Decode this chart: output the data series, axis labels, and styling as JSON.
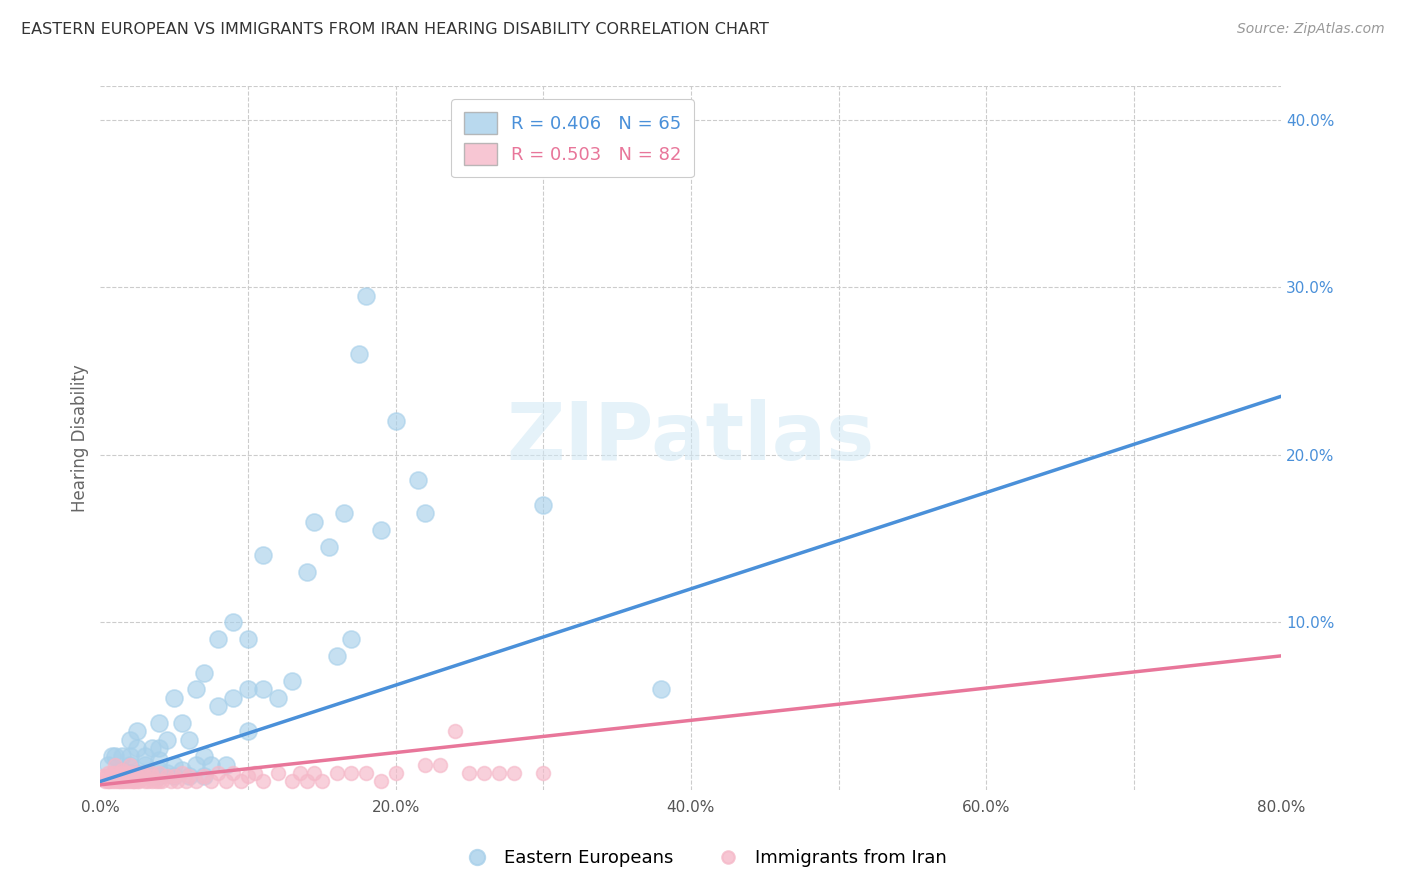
{
  "title": "EASTERN EUROPEAN VS IMMIGRANTS FROM IRAN HEARING DISABILITY CORRELATION CHART",
  "source": "Source: ZipAtlas.com",
  "xlabel": "",
  "ylabel": "Hearing Disability",
  "xlim": [
    0.0,
    0.8
  ],
  "ylim": [
    0.0,
    0.42
  ],
  "xticks": [
    0.0,
    0.1,
    0.2,
    0.3,
    0.4,
    0.5,
    0.6,
    0.7,
    0.8
  ],
  "xticklabels": [
    "0.0%",
    "",
    "20.0%",
    "",
    "40.0%",
    "",
    "60.0%",
    "",
    "80.0%"
  ],
  "yticks_right": [
    0.0,
    0.1,
    0.2,
    0.3,
    0.4
  ],
  "yticklabels_right": [
    "",
    "10.0%",
    "20.0%",
    "30.0%",
    "40.0%"
  ],
  "legend1_label": "R = 0.406   N = 65",
  "legend2_label": "R = 0.503   N = 82",
  "legend_bottom_label1": "Eastern Europeans",
  "legend_bottom_label2": "Immigrants from Iran",
  "blue_color": "#a8d0ea",
  "blue_fill_color": "#a8d0ea",
  "pink_color": "#f5b8c8",
  "pink_fill_color": "#f5b8c8",
  "blue_line_color": "#4a90d9",
  "pink_line_color": "#e8769a",
  "watermark": "ZIPatlas",
  "background_color": "#ffffff",
  "grid_color": "#cccccc",
  "blue_scatter_x": [
    0.005,
    0.008,
    0.01,
    0.01,
    0.015,
    0.015,
    0.015,
    0.02,
    0.02,
    0.02,
    0.02,
    0.025,
    0.025,
    0.025,
    0.03,
    0.03,
    0.03,
    0.035,
    0.035,
    0.04,
    0.04,
    0.04,
    0.04,
    0.04,
    0.045,
    0.045,
    0.05,
    0.05,
    0.05,
    0.055,
    0.055,
    0.06,
    0.06,
    0.065,
    0.065,
    0.07,
    0.07,
    0.07,
    0.075,
    0.08,
    0.08,
    0.085,
    0.09,
    0.09,
    0.1,
    0.1,
    0.1,
    0.11,
    0.11,
    0.12,
    0.13,
    0.14,
    0.145,
    0.155,
    0.16,
    0.165,
    0.17,
    0.175,
    0.18,
    0.19,
    0.2,
    0.215,
    0.22,
    0.3,
    0.38
  ],
  "blue_scatter_y": [
    0.015,
    0.02,
    0.01,
    0.02,
    0.008,
    0.012,
    0.02,
    0.01,
    0.015,
    0.02,
    0.03,
    0.01,
    0.025,
    0.035,
    0.01,
    0.015,
    0.02,
    0.008,
    0.025,
    0.008,
    0.012,
    0.018,
    0.025,
    0.04,
    0.01,
    0.03,
    0.008,
    0.015,
    0.055,
    0.012,
    0.04,
    0.008,
    0.03,
    0.015,
    0.06,
    0.008,
    0.02,
    0.07,
    0.015,
    0.05,
    0.09,
    0.015,
    0.055,
    0.1,
    0.035,
    0.06,
    0.09,
    0.06,
    0.14,
    0.055,
    0.065,
    0.13,
    0.16,
    0.145,
    0.08,
    0.165,
    0.09,
    0.26,
    0.295,
    0.155,
    0.22,
    0.185,
    0.165,
    0.17,
    0.06
  ],
  "pink_scatter_x": [
    0.002,
    0.003,
    0.004,
    0.005,
    0.005,
    0.006,
    0.007,
    0.008,
    0.008,
    0.01,
    0.01,
    0.01,
    0.01,
    0.012,
    0.012,
    0.013,
    0.014,
    0.015,
    0.015,
    0.015,
    0.016,
    0.017,
    0.018,
    0.018,
    0.02,
    0.02,
    0.02,
    0.02,
    0.022,
    0.022,
    0.023,
    0.024,
    0.025,
    0.025,
    0.026,
    0.028,
    0.03,
    0.03,
    0.032,
    0.034,
    0.035,
    0.035,
    0.038,
    0.04,
    0.04,
    0.042,
    0.045,
    0.048,
    0.05,
    0.052,
    0.055,
    0.058,
    0.06,
    0.065,
    0.07,
    0.075,
    0.08,
    0.085,
    0.09,
    0.095,
    0.1,
    0.105,
    0.11,
    0.12,
    0.13,
    0.135,
    0.14,
    0.145,
    0.15,
    0.16,
    0.17,
    0.18,
    0.19,
    0.2,
    0.22,
    0.23,
    0.24,
    0.25,
    0.26,
    0.27,
    0.28,
    0.3
  ],
  "pink_scatter_y": [
    0.008,
    0.005,
    0.008,
    0.005,
    0.01,
    0.005,
    0.008,
    0.005,
    0.01,
    0.005,
    0.008,
    0.01,
    0.015,
    0.005,
    0.008,
    0.005,
    0.01,
    0.005,
    0.008,
    0.012,
    0.005,
    0.008,
    0.005,
    0.01,
    0.005,
    0.008,
    0.01,
    0.015,
    0.005,
    0.008,
    0.005,
    0.01,
    0.005,
    0.008,
    0.005,
    0.01,
    0.005,
    0.008,
    0.005,
    0.01,
    0.005,
    0.008,
    0.005,
    0.005,
    0.01,
    0.005,
    0.008,
    0.005,
    0.008,
    0.005,
    0.01,
    0.005,
    0.008,
    0.005,
    0.008,
    0.005,
    0.01,
    0.005,
    0.01,
    0.005,
    0.008,
    0.01,
    0.005,
    0.01,
    0.005,
    0.01,
    0.005,
    0.01,
    0.005,
    0.01,
    0.01,
    0.01,
    0.005,
    0.01,
    0.015,
    0.015,
    0.035,
    0.01,
    0.01,
    0.01,
    0.01,
    0.01
  ],
  "blue_line_x": [
    0.0,
    0.8
  ],
  "blue_line_y": [
    0.005,
    0.235
  ],
  "pink_line_x": [
    0.0,
    0.8
  ],
  "pink_line_y": [
    0.003,
    0.08
  ]
}
